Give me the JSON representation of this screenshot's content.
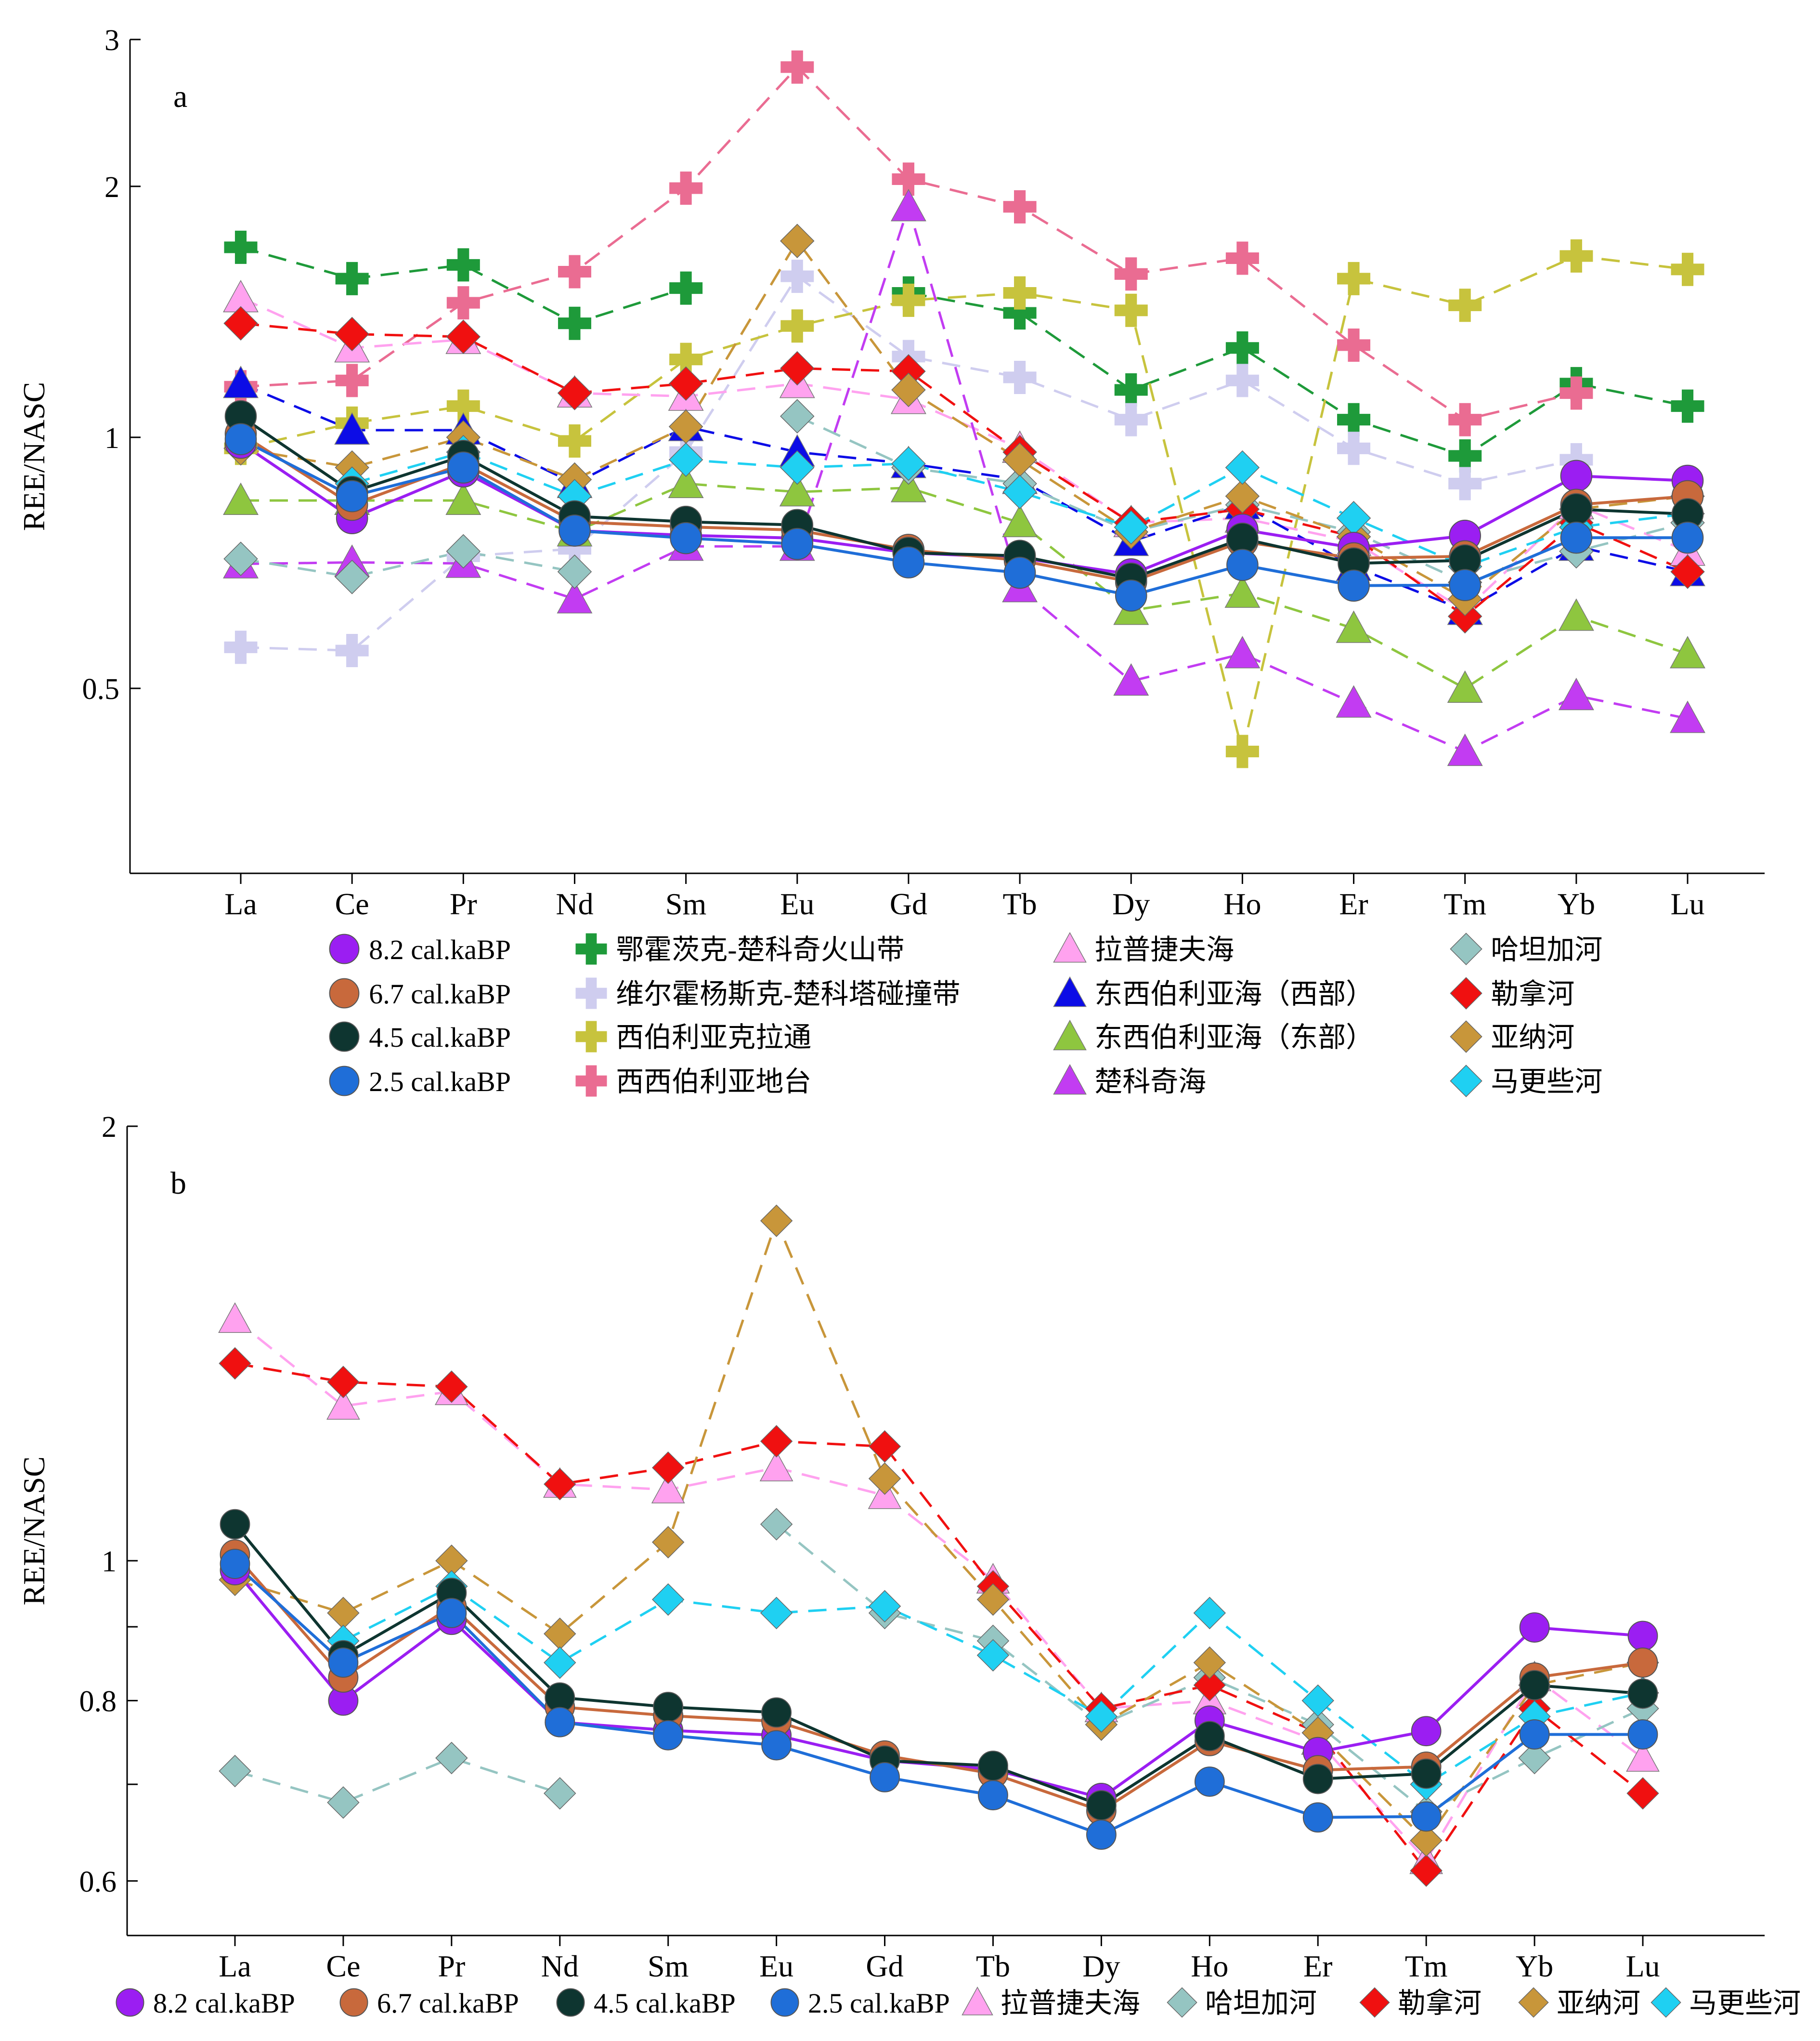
{
  "chart_data": [
    {
      "panel_label": "a",
      "type": "line",
      "ylabel": "REE/NASC",
      "yscale": "log",
      "ylim": [
        0.3,
        3
      ],
      "yticks": [
        0.5,
        1,
        2,
        3
      ],
      "yticklabels": [
        "0.5",
        "1",
        "2",
        "3"
      ],
      "categories": [
        "La",
        "Ce",
        "Pr",
        "Nd",
        "Sm",
        "Eu",
        "Gd",
        "Tb",
        "Dy",
        "Ho",
        "Er",
        "Tm",
        "Yb",
        "Lu"
      ],
      "series": [
        {
          "name": "鄂霍茨克-楚科奇火山带",
          "color": "#1e9a3a",
          "marker": "plus",
          "dashed": true,
          "values": [
            1.69,
            1.55,
            1.61,
            1.37,
            1.51,
            null,
            1.49,
            1.41,
            1.14,
            1.28,
            1.05,
            0.95,
            1.16,
            1.09
          ]
        },
        {
          "name": "维尔霍杨斯克-楚科塔碰撞带",
          "color": "#cfcdef",
          "marker": "plus",
          "dashed": true,
          "values": [
            0.56,
            0.555,
            0.72,
            0.735,
            0.96,
            1.56,
            1.25,
            1.18,
            1.05,
            1.17,
            0.97,
            0.88,
            0.94,
            null
          ]
        },
        {
          "name": "西伯利亚克拉通",
          "color": "#c7c33d",
          "marker": "plus",
          "dashed": true,
          "values": [
            0.97,
            1.04,
            1.09,
            0.99,
            1.24,
            1.36,
            1.46,
            1.49,
            1.42,
            0.42,
            1.55,
            1.44,
            1.65,
            1.59
          ]
        },
        {
          "name": "西西伯利亚地台",
          "color": "#ea6c92",
          "marker": "plus",
          "dashed": true,
          "values": [
            1.15,
            1.17,
            1.45,
            1.58,
            1.99,
            2.78,
            2.04,
            1.89,
            1.57,
            1.64,
            1.29,
            1.05,
            1.13,
            null
          ]
        },
        {
          "name": "拉普捷夫海",
          "color": "#ffa2ef",
          "marker": "triangle",
          "dashed": true,
          "values": [
            1.47,
            1.28,
            1.31,
            1.13,
            1.12,
            1.16,
            1.11,
            0.97,
            0.79,
            0.8,
            0.75,
            0.62,
            0.83,
            0.73
          ]
        },
        {
          "name": "东西伯利亚海（西部）",
          "color": "#0c0ce6",
          "marker": "triangle",
          "dashed": true,
          "values": [
            1.16,
            1.02,
            1.02,
            0.88,
            1.03,
            0.96,
            0.93,
            0.89,
            0.75,
            0.83,
            0.7,
            0.62,
            0.74,
            0.69
          ]
        },
        {
          "name": "东西伯利亚海（东部）",
          "color": "#8ec63f",
          "marker": "triangle",
          "dashed": true,
          "values": [
            0.84,
            0.84,
            0.84,
            0.77,
            0.88,
            0.86,
            0.87,
            0.79,
            0.62,
            0.65,
            0.59,
            0.5,
            0.61,
            0.55
          ]
        },
        {
          "name": "楚科奇海",
          "color": "#c23cf2",
          "marker": "triangle",
          "dashed": true,
          "values": [
            0.705,
            0.708,
            0.706,
            0.64,
            0.74,
            0.74,
            1.89,
            0.66,
            0.51,
            0.55,
            0.48,
            0.42,
            0.49,
            0.46
          ]
        },
        {
          "name": "哈坦加河",
          "color": "#95c5c2",
          "marker": "diamond",
          "dashed": true,
          "values": [
            0.715,
            0.68,
            0.73,
            0.69,
            null,
            1.06,
            0.92,
            0.88,
            0.77,
            0.83,
            0.77,
            0.67,
            0.73,
            0.79
          ]
        },
        {
          "name": "勒拿河",
          "color": "#f01010",
          "marker": "diamond",
          "dashed": true,
          "values": [
            1.37,
            1.33,
            1.32,
            1.13,
            1.16,
            1.21,
            1.2,
            0.96,
            0.79,
            0.82,
            0.76,
            0.61,
            0.79,
            0.69
          ]
        },
        {
          "name": "亚纳河",
          "color": "#c8963a",
          "marker": "diamond",
          "dashed": true,
          "values": [
            0.97,
            0.92,
            1.0,
            0.89,
            1.03,
            1.72,
            1.14,
            0.94,
            0.77,
            0.85,
            0.76,
            0.64,
            0.82,
            0.85
          ]
        },
        {
          "name": "马更些河",
          "color": "#1fd0f2",
          "marker": "diamond",
          "dashed": true,
          "values": [
            null,
            0.88,
            0.96,
            0.85,
            0.94,
            0.92,
            0.93,
            0.86,
            0.78,
            0.92,
            0.8,
            0.7,
            0.78,
            0.81
          ]
        },
        {
          "name": "8.2 cal.kaBP",
          "color": "#9b1ef2",
          "marker": "circle",
          "dashed": false,
          "values": [
            0.985,
            0.8,
            0.91,
            0.773,
            0.763,
            0.757,
            0.727,
            0.717,
            0.685,
            0.775,
            0.737,
            0.762,
            0.899,
            0.887
          ]
        },
        {
          "name": "6.7 cal.kaBP",
          "color": "#c8693c",
          "marker": "circle",
          "dashed": false,
          "values": [
            1.01,
            0.83,
            0.93,
            0.792,
            0.781,
            0.774,
            0.733,
            0.712,
            0.671,
            0.75,
            0.716,
            0.72,
            0.83,
            0.85
          ]
        },
        {
          "name": "4.5 cal.kaBP",
          "color": "#0e3530",
          "marker": "circle",
          "dashed": false,
          "values": [
            1.06,
            0.86,
            0.95,
            0.804,
            0.792,
            0.785,
            0.727,
            0.721,
            0.677,
            0.756,
            0.706,
            0.712,
            0.82,
            0.809
          ]
        },
        {
          "name": "2.5 cal.kaBP",
          "color": "#1f6ed8",
          "marker": "circle",
          "dashed": false,
          "values": [
            0.995,
            0.85,
            0.92,
            0.773,
            0.757,
            0.745,
            0.708,
            0.688,
            0.646,
            0.703,
            0.664,
            0.665,
            0.758,
            0.758
          ]
        }
      ],
      "legend": {
        "placement": "below",
        "columns": [
          [
            "8.2 cal.kaBP",
            "6.7 cal.kaBP",
            "4.5 cal.kaBP",
            "2.5 cal.kaBP"
          ],
          [
            "鄂霍茨克-楚科奇火山带",
            "维尔霍杨斯克-楚科塔碰撞带",
            "西伯利亚克拉通",
            "西西伯利亚地台"
          ],
          [
            "拉普捷夫海",
            "东西伯利亚海（西部）",
            "东西伯利亚海（东部）",
            "楚科奇海"
          ],
          [
            "哈坦加河",
            "勒拿河",
            "亚纳河",
            "马更些河"
          ]
        ]
      }
    },
    {
      "panel_label": "b",
      "type": "line",
      "ylabel": "REE/NASC",
      "yscale": "log",
      "ylim": [
        0.55,
        2
      ],
      "yticks": [
        0.6,
        0.7,
        0.8,
        0.9,
        1,
        2
      ],
      "yticklabels": [
        "0.6",
        "",
        "0.8",
        "",
        "1",
        "2"
      ],
      "categories": [
        "La",
        "Ce",
        "Pr",
        "Nd",
        "Sm",
        "Eu",
        "Gd",
        "Tb",
        "Dy",
        "Ho",
        "Er",
        "Tm",
        "Yb",
        "Lu"
      ],
      "series": [
        {
          "name": "拉普捷夫海",
          "color": "#ffa2ef",
          "marker": "triangle",
          "dashed": true,
          "values": [
            1.47,
            1.28,
            1.31,
            1.13,
            1.12,
            1.16,
            1.11,
            0.97,
            0.79,
            0.8,
            0.75,
            0.62,
            0.83,
            0.73
          ]
        },
        {
          "name": "哈坦加河",
          "color": "#95c5c2",
          "marker": "diamond",
          "dashed": true,
          "values": [
            0.715,
            0.68,
            0.73,
            0.69,
            null,
            1.06,
            0.92,
            0.88,
            0.77,
            0.83,
            0.77,
            0.67,
            0.73,
            0.79
          ]
        },
        {
          "name": "勒拿河",
          "color": "#f01010",
          "marker": "diamond",
          "dashed": true,
          "values": [
            1.37,
            1.33,
            1.32,
            1.13,
            1.16,
            1.21,
            1.2,
            0.96,
            0.79,
            0.82,
            0.76,
            0.61,
            0.79,
            0.69
          ]
        },
        {
          "name": "亚纳河",
          "color": "#c8963a",
          "marker": "diamond",
          "dashed": true,
          "values": [
            0.97,
            0.92,
            1.0,
            0.89,
            1.03,
            1.72,
            1.14,
            0.94,
            0.77,
            0.85,
            0.76,
            0.64,
            0.82,
            0.85
          ]
        },
        {
          "name": "马更些河",
          "color": "#1fd0f2",
          "marker": "diamond",
          "dashed": true,
          "values": [
            null,
            0.88,
            0.96,
            0.85,
            0.94,
            0.92,
            0.93,
            0.86,
            0.78,
            0.92,
            0.8,
            0.7,
            0.78,
            0.81
          ]
        },
        {
          "name": "8.2 cal.kaBP",
          "color": "#9b1ef2",
          "marker": "circle",
          "dashed": false,
          "values": [
            0.985,
            0.8,
            0.91,
            0.773,
            0.763,
            0.757,
            0.727,
            0.717,
            0.685,
            0.775,
            0.737,
            0.762,
            0.899,
            0.887
          ]
        },
        {
          "name": "6.7 cal.kaBP",
          "color": "#c8693c",
          "marker": "circle",
          "dashed": false,
          "values": [
            1.01,
            0.83,
            0.93,
            0.792,
            0.781,
            0.774,
            0.733,
            0.712,
            0.671,
            0.75,
            0.716,
            0.72,
            0.83,
            0.85
          ]
        },
        {
          "name": "4.5 cal.kaBP",
          "color": "#0e3530",
          "marker": "circle",
          "dashed": false,
          "values": [
            1.06,
            0.86,
            0.95,
            0.804,
            0.792,
            0.785,
            0.727,
            0.721,
            0.677,
            0.756,
            0.706,
            0.712,
            0.82,
            0.809
          ]
        },
        {
          "name": "2.5 cal.kaBP",
          "color": "#1f6ed8",
          "marker": "circle",
          "dashed": false,
          "values": [
            0.995,
            0.85,
            0.92,
            0.773,
            0.757,
            0.745,
            0.708,
            0.688,
            0.646,
            0.703,
            0.664,
            0.665,
            0.758,
            0.758
          ]
        }
      ],
      "legend": {
        "placement": "below",
        "items": [
          "8.2 cal.kaBP",
          "6.7 cal.kaBP",
          "4.5 cal.kaBP",
          "2.5 cal.kaBP",
          "拉普捷夫海",
          "哈坦加河",
          "勒拿河",
          "亚纳河",
          "马更些河"
        ]
      }
    }
  ]
}
